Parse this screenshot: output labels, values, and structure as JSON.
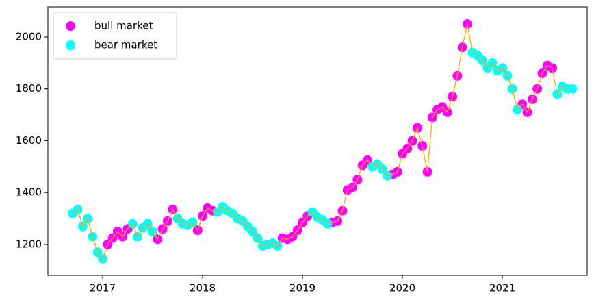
{
  "chart_data": {
    "type": "scatter",
    "xlim": [
      2016.452,
      2021.849
    ],
    "ylim": [
      1081,
      2116
    ],
    "xticks": [
      2017,
      2018,
      2019,
      2020,
      2021
    ],
    "yticks": [
      1200,
      1400,
      1600,
      1800,
      2000
    ],
    "legend": "upper left",
    "series": [
      {
        "name": "bull market",
        "color": "#ff00ff",
        "x": [
          2017.05,
          2017.1,
          2017.15,
          2017.2,
          2017.25,
          2017.55,
          2017.6,
          2017.65,
          2017.7,
          2017.95,
          2018.0,
          2018.05,
          2018.1,
          2018.8,
          2018.85,
          2018.9,
          2018.95,
          2019.0,
          2019.05,
          2019.3,
          2019.35,
          2019.4,
          2019.45,
          2019.5,
          2019.55,
          2019.6,
          2019.65,
          2019.9,
          2019.95,
          2020.0,
          2020.05,
          2020.1,
          2020.15,
          2020.2,
          2020.25,
          2020.3,
          2020.35,
          2020.4,
          2020.45,
          2020.5,
          2020.55,
          2020.6,
          2020.65,
          2021.2,
          2021.25,
          2021.3,
          2021.35,
          2021.4,
          2021.45,
          2021.5
        ],
        "values": [
          1200,
          1225,
          1250,
          1230,
          1260,
          1220,
          1260,
          1290,
          1335,
          1255,
          1310,
          1340,
          1330,
          1225,
          1220,
          1230,
          1255,
          1285,
          1310,
          1285,
          1290,
          1330,
          1410,
          1420,
          1450,
          1505,
          1525,
          1470,
          1480,
          1550,
          1570,
          1600,
          1650,
          1580,
          1480,
          1690,
          1720,
          1730,
          1710,
          1770,
          1850,
          1960,
          2050,
          1740,
          1710,
          1760,
          1800,
          1860,
          1890,
          1880
        ]
      },
      {
        "name": "bear market",
        "color": "#00ffff",
        "x": [
          2016.7,
          2016.75,
          2016.8,
          2016.85,
          2016.9,
          2016.95,
          2017.0,
          2017.3,
          2017.35,
          2017.4,
          2017.45,
          2017.5,
          2017.75,
          2017.8,
          2017.85,
          2017.9,
          2018.15,
          2018.2,
          2018.25,
          2018.3,
          2018.35,
          2018.4,
          2018.45,
          2018.5,
          2018.55,
          2018.6,
          2018.65,
          2018.7,
          2018.75,
          2019.1,
          2019.15,
          2019.2,
          2019.25,
          2019.7,
          2019.75,
          2019.8,
          2019.85,
          2020.7,
          2020.75,
          2020.8,
          2020.85,
          2020.9,
          2020.95,
          2021.0,
          2021.05,
          2021.1,
          2021.15,
          2021.55,
          2021.6,
          2021.65,
          2021.7
        ],
        "values": [
          1320,
          1335,
          1270,
          1300,
          1230,
          1170,
          1145,
          1280,
          1230,
          1265,
          1280,
          1250,
          1300,
          1280,
          1275,
          1285,
          1325,
          1345,
          1330,
          1320,
          1300,
          1290,
          1270,
          1250,
          1225,
          1195,
          1200,
          1205,
          1195,
          1325,
          1305,
          1295,
          1280,
          1500,
          1510,
          1490,
          1465,
          1940,
          1930,
          1910,
          1880,
          1900,
          1870,
          1880,
          1850,
          1800,
          1720,
          1780,
          1810,
          1800,
          1800
        ]
      },
      {
        "type": "line",
        "color": "#ffa500",
        "x": [
          2016.7,
          2016.75,
          2016.8,
          2016.85,
          2016.9,
          2016.95,
          2017.0,
          2017.05,
          2017.1,
          2017.15,
          2017.2,
          2017.25,
          2017.3,
          2017.35,
          2017.4,
          2017.45,
          2017.5,
          2017.55,
          2017.6,
          2017.65,
          2017.7,
          2017.75,
          2017.8,
          2017.85,
          2017.9,
          2017.95,
          2018.0,
          2018.05,
          2018.1,
          2018.15,
          2018.2,
          2018.25,
          2018.3,
          2018.35,
          2018.4,
          2018.45,
          2018.5,
          2018.55,
          2018.6,
          2018.65,
          2018.7,
          2018.75,
          2018.8,
          2018.85,
          2018.9,
          2018.95,
          2019.0,
          2019.05,
          2019.1,
          2019.15,
          2019.2,
          2019.25,
          2019.3,
          2019.35,
          2019.4,
          2019.45,
          2019.5,
          2019.55,
          2019.6,
          2019.65,
          2019.7,
          2019.75,
          2019.8,
          2019.85,
          2019.9,
          2019.95,
          2020.0,
          2020.05,
          2020.1,
          2020.15,
          2020.2,
          2020.25,
          2020.3,
          2020.35,
          2020.4,
          2020.45,
          2020.5,
          2020.55,
          2020.6,
          2020.65,
          2020.7,
          2020.75,
          2020.8,
          2020.85,
          2020.9,
          2020.95,
          2021.0,
          2021.05,
          2021.1,
          2021.15,
          2021.2,
          2021.25,
          2021.3,
          2021.35,
          2021.4,
          2021.45,
          2021.5,
          2021.55,
          2021.6,
          2021.65,
          2021.7
        ],
        "values": [
          1320,
          1335,
          1270,
          1300,
          1230,
          1170,
          1145,
          1200,
          1225,
          1250,
          1230,
          1260,
          1280,
          1230,
          1265,
          1280,
          1250,
          1220,
          1260,
          1290,
          1335,
          1300,
          1280,
          1275,
          1285,
          1255,
          1310,
          1340,
          1330,
          1325,
          1345,
          1330,
          1320,
          1300,
          1290,
          1270,
          1250,
          1225,
          1195,
          1200,
          1205,
          1195,
          1225,
          1220,
          1230,
          1255,
          1285,
          1310,
          1325,
          1305,
          1295,
          1280,
          1285,
          1290,
          1330,
          1410,
          1420,
          1450,
          1505,
          1525,
          1500,
          1510,
          1490,
          1465,
          1470,
          1480,
          1550,
          1570,
          1600,
          1650,
          1580,
          1480,
          1690,
          1720,
          1730,
          1710,
          1770,
          1850,
          1960,
          2050,
          1940,
          1930,
          1910,
          1880,
          1900,
          1870,
          1880,
          1850,
          1800,
          1720,
          1740,
          1710,
          1760,
          1800,
          1860,
          1890,
          1880,
          1780,
          1810,
          1800,
          1800
        ]
      }
    ]
  }
}
